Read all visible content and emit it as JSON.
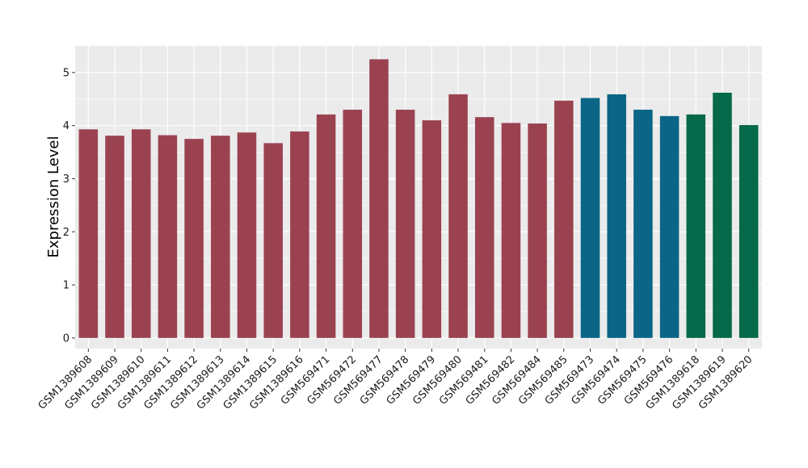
{
  "chart_data": {
    "type": "bar",
    "title": "",
    "xlabel": "",
    "ylabel": "Expression Level",
    "ylim": [
      -0.2,
      5.5
    ],
    "yticks": [
      0,
      1,
      2,
      3,
      4,
      5
    ],
    "grid": true,
    "legend": "none",
    "panel_background": "#ebebeb",
    "grid_color": "#ffffff",
    "categories": [
      "GSM1389608",
      "GSM1389609",
      "GSM1389610",
      "GSM1389611",
      "GSM1389612",
      "GSM1389613",
      "GSM1389614",
      "GSM1389615",
      "GSM1389616",
      "GSM569471",
      "GSM569472",
      "GSM569477",
      "GSM569478",
      "GSM569479",
      "GSM569480",
      "GSM569481",
      "GSM569482",
      "GSM569484",
      "GSM569485",
      "GSM569473",
      "GSM569474",
      "GSM569475",
      "GSM569476",
      "GSM1389618",
      "GSM1389619",
      "GSM1389620"
    ],
    "values": [
      3.93,
      3.81,
      3.93,
      3.82,
      3.75,
      3.81,
      3.87,
      3.67,
      3.89,
      4.21,
      4.3,
      5.25,
      4.3,
      4.1,
      4.59,
      4.16,
      4.05,
      4.04,
      4.47,
      4.52,
      4.59,
      4.3,
      4.18,
      4.21,
      4.62,
      4.01
    ],
    "colors": [
      "#9b4251",
      "#9b4251",
      "#9b4251",
      "#9b4251",
      "#9b4251",
      "#9b4251",
      "#9b4251",
      "#9b4251",
      "#9b4251",
      "#9b4251",
      "#9b4251",
      "#9b4251",
      "#9b4251",
      "#9b4251",
      "#9b4251",
      "#9b4251",
      "#9b4251",
      "#9b4251",
      "#9b4251",
      "#0b6586",
      "#0b6586",
      "#0b6586",
      "#0b6586",
      "#05694a",
      "#05694a",
      "#05694a"
    ]
  }
}
